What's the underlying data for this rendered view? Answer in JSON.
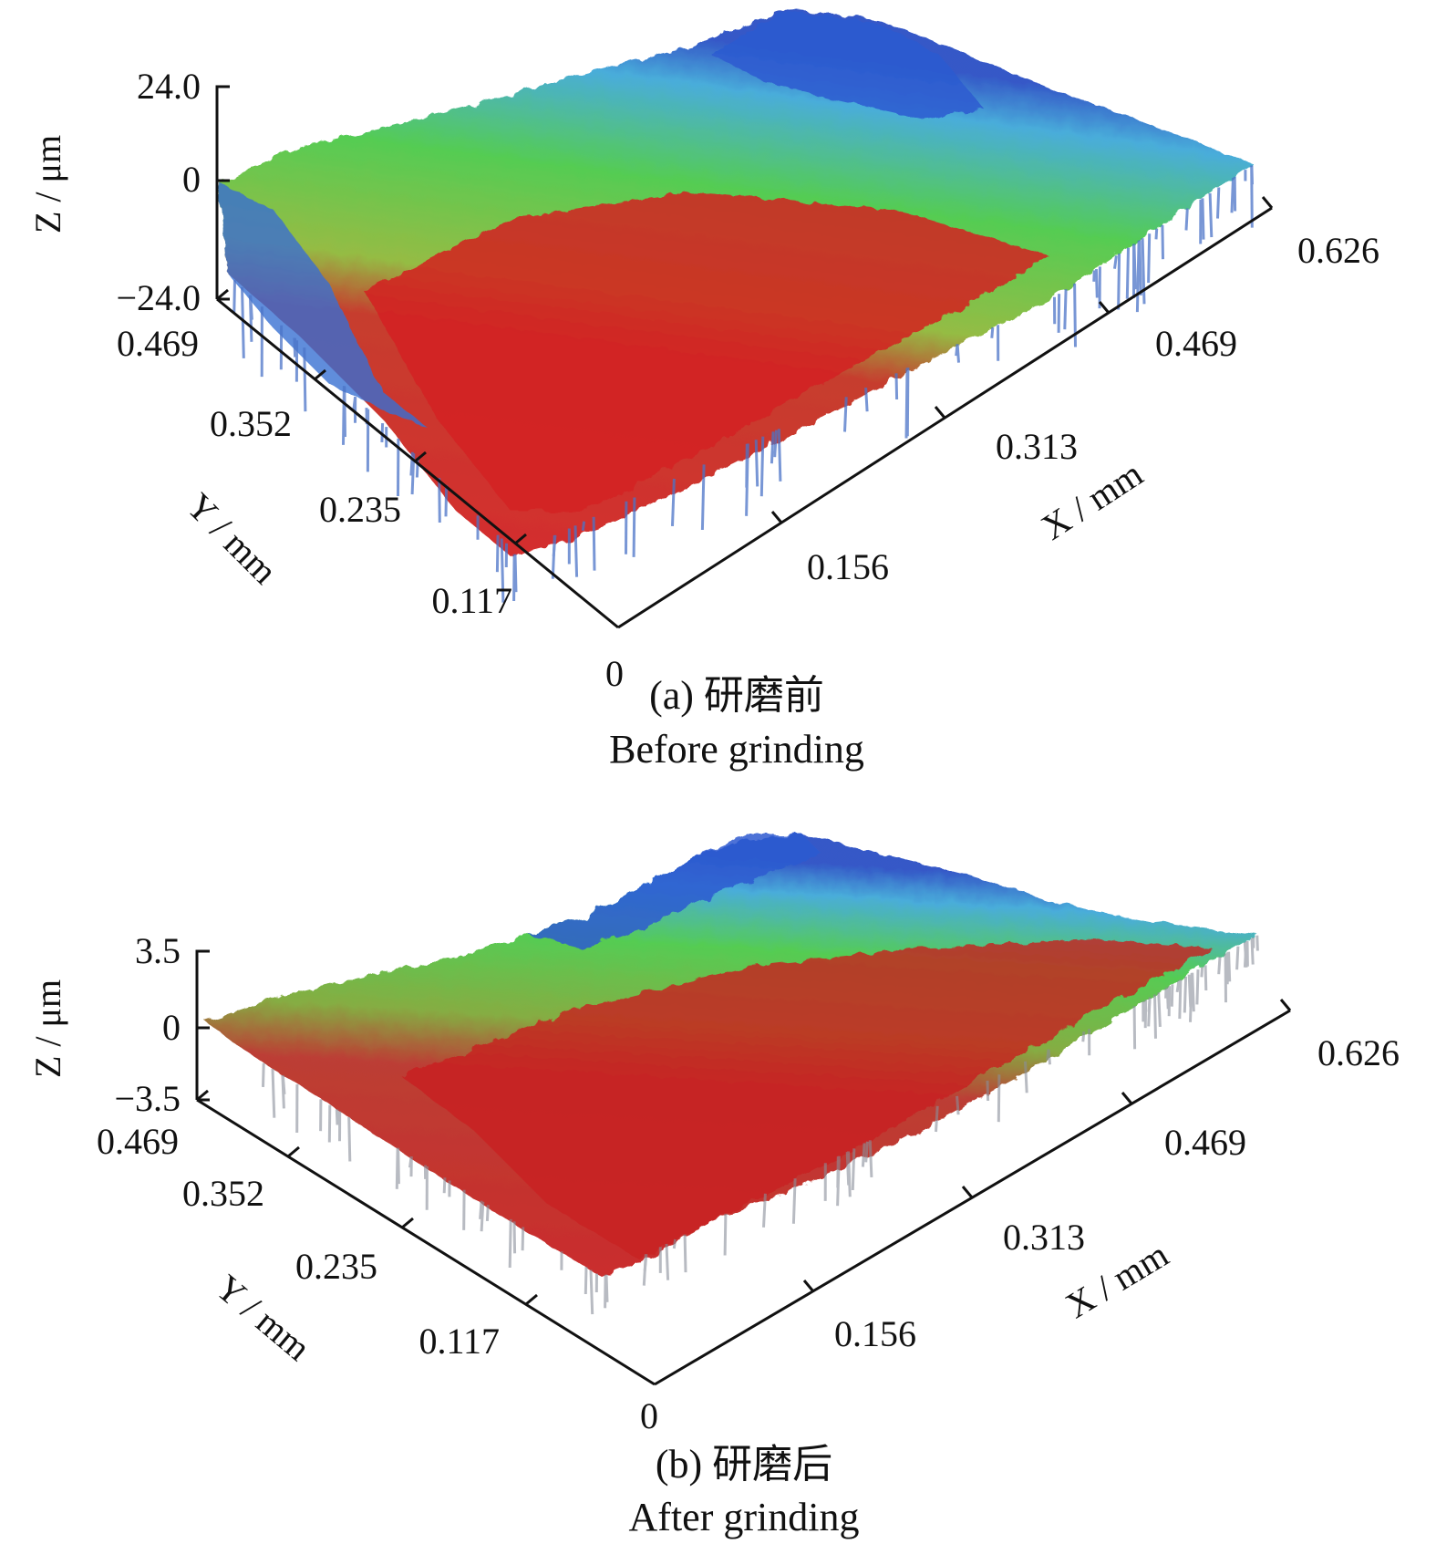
{
  "chart_data": [
    {
      "type": "surface-3d",
      "panel": "(a)",
      "caption_cn": "(a) 研磨前",
      "caption_en": "Before grinding",
      "xlabel": "X / mm",
      "ylabel": "Y / mm",
      "zlabel": "Z / μm",
      "x_ticks": [
        "0.156",
        "0.313",
        "0.469",
        "0.626"
      ],
      "y_ticks": [
        "0.469",
        "0.352",
        "0.235",
        "0.117"
      ],
      "origin_tick": "0",
      "z_ticks": [
        "24.0",
        "0",
        "−24.0"
      ],
      "xlim": [
        0,
        0.626
      ],
      "ylim": [
        0,
        0.469
      ],
      "zlim": [
        -24.0,
        24.0
      ],
      "colormap": [
        "#2a4fc4",
        "#3fa8d8",
        "#4cc94a",
        "#8fcf3a",
        "#b55a2a",
        "#d42020"
      ]
    },
    {
      "type": "surface-3d",
      "panel": "(b)",
      "caption_cn": "(b) 研磨后",
      "caption_en": "After grinding",
      "xlabel": "X / mm",
      "ylabel": "Y / mm",
      "zlabel": "Z / μm",
      "x_ticks": [
        "0.156",
        "0.313",
        "0.469",
        "0.626"
      ],
      "y_ticks": [
        "0.469",
        "0.352",
        "0.235",
        "0.117"
      ],
      "origin_tick": "0",
      "z_ticks": [
        "3.5",
        "0",
        "−3.5"
      ],
      "xlim": [
        0,
        0.626
      ],
      "ylim": [
        0,
        0.469
      ],
      "zlim": [
        -3.5,
        3.5
      ],
      "colormap": [
        "#2a4fc4",
        "#3fa8d8",
        "#4cc94a",
        "#8fcf3a",
        "#b55a2a",
        "#d42020"
      ]
    }
  ]
}
